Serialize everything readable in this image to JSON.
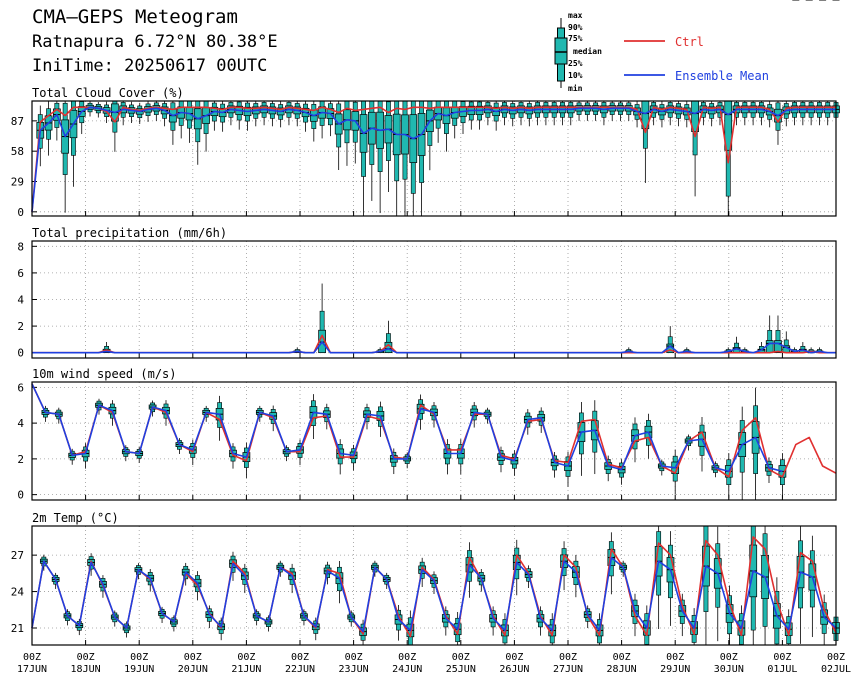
{
  "header": {
    "title": "CMA—GEPS Meteogram",
    "location": "Ratnapura 6.72°N 80.38°E",
    "init": "IniTime: 20250617 00UTC"
  },
  "legend": {
    "box_labels": [
      "max",
      "90%",
      "75%",
      "median",
      "25%",
      "10%",
      "min"
    ],
    "ctrl_label": "Ctrl",
    "mean_label": "Ensemble Mean",
    "ctrl_color": "#e03030",
    "mean_color": "#2040e0",
    "box_color": "#20b8b0"
  },
  "chart_data": [
    {
      "type": "line",
      "title": "Total Cloud Cover (%)",
      "ylim": [
        -4,
        106
      ],
      "yticks": [
        0,
        29,
        58,
        87
      ],
      "series": [
        {
          "name": "Ctrl",
          "values": [
            0,
            86,
            92,
            98,
            92,
            100,
            100,
            100,
            99,
            96,
            86,
            100,
            98,
            97,
            99,
            100,
            99,
            98,
            100,
            100,
            100,
            100,
            99,
            98,
            100,
            100,
            99,
            99,
            100,
            99,
            98,
            100,
            99,
            98,
            97,
            100,
            98,
            95,
            99,
            97,
            98,
            99,
            100,
            95,
            99,
            98,
            100,
            100,
            99,
            100,
            100,
            100,
            100,
            100,
            100,
            100,
            99,
            100,
            99,
            100,
            99,
            100,
            100,
            100,
            100,
            100,
            100,
            100,
            100,
            100,
            100,
            100,
            100,
            98,
            76,
            100,
            98,
            100,
            99,
            98,
            72,
            100,
            99,
            100,
            47,
            100,
            100,
            100,
            100,
            98,
            86,
            99,
            100,
            100,
            100,
            100,
            100,
            100
          ]
        },
        {
          "name": "Ensemble Mean",
          "values": [
            0,
            78,
            85,
            93,
            72,
            84,
            96,
            100,
            99,
            97,
            95,
            98,
            97,
            96,
            98,
            99,
            97,
            92,
            95,
            94,
            89,
            92,
            96,
            95,
            98,
            97,
            96,
            97,
            98,
            97,
            96,
            98,
            97,
            95,
            92,
            95,
            94,
            84,
            88,
            87,
            75,
            80,
            78,
            79,
            74,
            74,
            70,
            74,
            87,
            94,
            92,
            95,
            96,
            97,
            97,
            98,
            96,
            98,
            97,
            98,
            97,
            98,
            98,
            98,
            98,
            98,
            99,
            99,
            99,
            98,
            99,
            99,
            99,
            96,
            94,
            98,
            96,
            98,
            97,
            96,
            94,
            98,
            97,
            98,
            93,
            98,
            98,
            98,
            98,
            96,
            92,
            97,
            98,
            98,
            98,
            98,
            98,
            98
          ]
        }
      ]
    },
    {
      "type": "line",
      "title": "Total precipitation (mm/6h)",
      "ylim": [
        -0.4,
        8.4
      ],
      "yticks": [
        0,
        2,
        4,
        6,
        8
      ],
      "series": [
        {
          "name": "Ctrl",
          "values": [
            0,
            0,
            0,
            0,
            0,
            0,
            0,
            0,
            0,
            0.2,
            0,
            0,
            0,
            0,
            0,
            0,
            0,
            0,
            0,
            0,
            0,
            0,
            0,
            0,
            0,
            0,
            0,
            0,
            0,
            0,
            0,
            0,
            0.1,
            0,
            0,
            1.3,
            0,
            0,
            0,
            0,
            0,
            0,
            0.1,
            0.6,
            0,
            0,
            0,
            0,
            0,
            0,
            0,
            0,
            0,
            0,
            0,
            0,
            0,
            0,
            0,
            0,
            0,
            0,
            0,
            0,
            0,
            0,
            0,
            0,
            0,
            0,
            0,
            0,
            0,
            0,
            0,
            0,
            0,
            0.2,
            0,
            0,
            0,
            0,
            0,
            0,
            0,
            0,
            0,
            0,
            0,
            0,
            0.1,
            0,
            0,
            0,
            0.1,
            0,
            0,
            0
          ]
        },
        {
          "name": "Ensemble Mean",
          "values": [
            0,
            0,
            0,
            0,
            0,
            0,
            0,
            0,
            0,
            0.1,
            0,
            0,
            0,
            0,
            0,
            0,
            0,
            0,
            0,
            0,
            0,
            0,
            0,
            0,
            0,
            0,
            0,
            0,
            0,
            0,
            0,
            0,
            0.1,
            0,
            0,
            0.8,
            0,
            0,
            0,
            0,
            0,
            0,
            0.1,
            0.3,
            0,
            0,
            0,
            0,
            0,
            0,
            0,
            0,
            0,
            0,
            0,
            0,
            0,
            0,
            0,
            0,
            0,
            0,
            0,
            0,
            0,
            0,
            0,
            0,
            0,
            0,
            0,
            0,
            0.1,
            0,
            0,
            0,
            0,
            0.5,
            0,
            0.1,
            0,
            0,
            0,
            0,
            0.1,
            0.3,
            0.1,
            0,
            0.2,
            0.7,
            0.7,
            0.4,
            0.1,
            0.2,
            0,
            0.1,
            0,
            0
          ]
        }
      ]
    },
    {
      "type": "line",
      "title": "10m wind speed (m/s)",
      "ylim": [
        -0.3,
        6.3
      ],
      "yticks": [
        0,
        2,
        4,
        6
      ],
      "series": [
        {
          "name": "Ctrl",
          "values": [
            6.2,
            4.6,
            4.5,
            2.2,
            2.4,
            5,
            4.6,
            2.4,
            2.3,
            4.9,
            4.6,
            2.8,
            2.4,
            4.6,
            4.2,
            2.2,
            1.9,
            4.6,
            4.3,
            2.4,
            2.4,
            4.3,
            4.4,
            2.1,
            2.1,
            4.4,
            4.2,
            2.1,
            2,
            5,
            4.5,
            2.5,
            2.5,
            4.5,
            4.5,
            2.2,
            2,
            4.1,
            4.2,
            1.9,
            1.8,
            4.1,
            4.2,
            1.7,
            1.5,
            3,
            3.2,
            1.6,
            1.2,
            3,
            3.5,
            1.5,
            1,
            3.6,
            4.3,
            1.4,
            1,
            2.8,
            3.2,
            1.6,
            1.2
          ]
        },
        {
          "name": "Ensemble Mean",
          "values": [
            6.2,
            4.6,
            4.5,
            2.2,
            2.3,
            5,
            4.7,
            2.4,
            2.3,
            4.9,
            4.7,
            2.8,
            2.5,
            4.6,
            4.5,
            2.3,
            2.1,
            4.6,
            4.4,
            2.4,
            2.5,
            4.6,
            4.5,
            2.3,
            2.2,
            4.5,
            4.4,
            2,
            2,
            4.8,
            4.6,
            2.3,
            2.3,
            4.6,
            4.5,
            2.1,
            1.9,
            4.2,
            4.3,
            1.8,
            1.6,
            3.5,
            3.6,
            1.6,
            1.4,
            3.3,
            3.5,
            1.6,
            1.5,
            3,
            3.1,
            1.5,
            1.3,
            2.8,
            3.2,
            1.5,
            1.3
          ]
        }
      ]
    },
    {
      "type": "line",
      "title": "2m Temp (°C)",
      "ylim": [
        19.6,
        29.4
      ],
      "yticks": [
        21,
        24,
        27
      ],
      "series": [
        {
          "name": "Ctrl",
          "values": [
            21,
            26.5,
            25,
            22,
            21.2,
            26.5,
            24.5,
            21.9,
            21,
            25.8,
            25,
            22.2,
            21.5,
            25.5,
            24.5,
            22.2,
            21,
            26.5,
            25.5,
            22,
            21.5,
            26,
            25.5,
            22,
            21,
            25.8,
            25.5,
            21.9,
            20.5,
            26,
            25,
            22,
            20.3,
            26,
            25,
            22,
            20.5,
            26.8,
            25,
            22,
            20.4,
            27,
            25.5,
            22,
            20.4,
            27,
            26,
            22,
            20.4,
            27.5,
            26,
            22,
            20.4,
            28,
            27,
            22.8,
            20.5,
            28.2,
            27,
            23,
            20.4,
            28.5,
            27.5,
            23.2,
            20.4,
            27.2,
            26.5,
            22.5,
            20.6
          ]
        },
        {
          "name": "Ensemble Mean",
          "values": [
            21,
            26.5,
            25,
            22,
            21.2,
            26.4,
            24.6,
            21.9,
            21,
            25.8,
            25.1,
            22.2,
            21.5,
            25.6,
            24.7,
            22.1,
            21.1,
            26.3,
            25.3,
            22,
            21.5,
            26,
            25.3,
            22,
            21.1,
            25.7,
            25.1,
            21.9,
            20.7,
            26,
            25,
            21.7,
            20.8,
            25.8,
            24.9,
            21.8,
            20.9,
            26.2,
            25.1,
            21.8,
            20.8,
            26.4,
            25.4,
            21.8,
            20.8,
            26.5,
            25.6,
            22.1,
            20.8,
            26.8,
            26,
            22.4,
            21,
            26.5,
            25.8,
            22.4,
            21,
            26.1,
            25.5,
            22.2,
            21,
            25.7,
            25.2,
            22,
            20.9,
            25.6,
            25.2,
            21.9,
            21
          ]
        }
      ]
    }
  ],
  "x_axis": {
    "ticks": [
      {
        "hour": "00Z",
        "day": "17JUN"
      },
      {
        "hour": "00Z",
        "day": "18JUN"
      },
      {
        "hour": "00Z",
        "day": "19JUN"
      },
      {
        "hour": "00Z",
        "day": "20JUN"
      },
      {
        "hour": "00Z",
        "day": "21JUN"
      },
      {
        "hour": "00Z",
        "day": "22JUN"
      },
      {
        "hour": "00Z",
        "day": "23JUN"
      },
      {
        "hour": "00Z",
        "day": "24JUN"
      },
      {
        "hour": "00Z",
        "day": "25JUN"
      },
      {
        "hour": "00Z",
        "day": "26JUN"
      },
      {
        "hour": "00Z",
        "day": "27JUN"
      },
      {
        "hour": "00Z",
        "day": "28JUN"
      },
      {
        "hour": "00Z",
        "day": "29JUN"
      },
      {
        "hour": "00Z",
        "day": "30JUN"
      },
      {
        "hour": "00Z",
        "day": "01JUL"
      },
      {
        "hour": "00Z",
        "day": "02JUL"
      }
    ]
  }
}
